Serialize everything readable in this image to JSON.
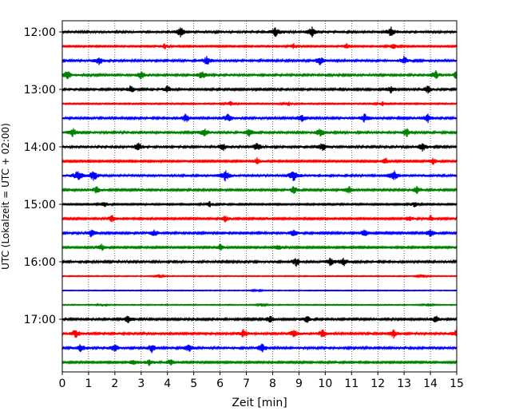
{
  "chart_data": {
    "type": "line",
    "subtype": "helicorder-seismogram",
    "xlabel": "Zeit  [min]",
    "ylabel": "UTC (Lokalzeit = UTC + 02:00)",
    "xlim": [
      0,
      15
    ],
    "x_ticks": [
      "0",
      "1",
      "2",
      "3",
      "4",
      "5",
      "6",
      "7",
      "8",
      "9",
      "10",
      "11",
      "12",
      "13",
      "14",
      "15"
    ],
    "y_tick_labels": [
      "12:00",
      "13:00",
      "14:00",
      "15:00",
      "16:00",
      "17:00"
    ],
    "grid": "vertical dotted lines at each minute",
    "trace_interval_minutes": 15,
    "first_trace_start": "12:00",
    "trace_colors": [
      "#000000",
      "#ff0000",
      "#0000ff",
      "#008000"
    ],
    "traces": [
      {
        "start": "12:00",
        "amplitude": 1.0,
        "events_min": [
          4.5,
          8.1,
          9.5,
          12.5
        ]
      },
      {
        "start": "12:15",
        "amplitude": 0.6,
        "events_min": [
          3.9,
          8.8,
          10.8,
          12.6
        ]
      },
      {
        "start": "12:30",
        "amplitude": 0.9,
        "events_min": [
          1.4,
          5.5,
          9.8,
          13.0
        ]
      },
      {
        "start": "12:45",
        "amplitude": 0.9,
        "events_min": [
          0.2,
          3.0,
          5.3,
          14.2,
          15.0
        ]
      },
      {
        "start": "13:00",
        "amplitude": 0.8,
        "events_min": [
          2.6,
          4.0,
          12.5,
          13.9
        ]
      },
      {
        "start": "13:15",
        "amplitude": 0.5,
        "events_min": [
          6.4,
          8.6,
          12.2
        ]
      },
      {
        "start": "13:30",
        "amplitude": 0.9,
        "events_min": [
          4.7,
          6.3,
          9.1,
          11.5,
          13.9
        ]
      },
      {
        "start": "13:45",
        "amplitude": 0.9,
        "events_min": [
          0.4,
          5.4,
          7.1,
          9.8,
          13.1
        ]
      },
      {
        "start": "14:00",
        "amplitude": 0.9,
        "events_min": [
          2.9,
          6.1,
          7.4,
          9.9,
          13.7
        ]
      },
      {
        "start": "14:15",
        "amplitude": 0.7,
        "events_min": [
          7.4,
          12.3,
          14.1
        ]
      },
      {
        "start": "14:30",
        "amplitude": 1.1,
        "events_min": [
          0.6,
          1.2,
          6.2,
          8.8,
          12.6
        ]
      },
      {
        "start": "14:45",
        "amplitude": 0.8,
        "events_min": [
          1.3,
          8.8,
          10.9,
          13.5
        ]
      },
      {
        "start": "15:00",
        "amplitude": 0.6,
        "events_min": [
          1.6,
          5.6,
          13.4
        ]
      },
      {
        "start": "15:15",
        "amplitude": 0.7,
        "events_min": [
          1.9,
          6.2,
          13.2,
          14.0
        ]
      },
      {
        "start": "15:30",
        "amplitude": 0.8,
        "events_min": [
          1.1,
          3.5,
          8.8,
          11.5,
          14.0
        ]
      },
      {
        "start": "15:45",
        "amplitude": 0.7,
        "events_min": [
          1.5,
          6.0,
          8.2
        ]
      },
      {
        "start": "16:00",
        "amplitude": 0.9,
        "events_min": [
          8.9,
          10.2,
          10.7
        ]
      },
      {
        "start": "16:15",
        "amplitude": 0.35,
        "events_min": [
          3.7,
          13.7
        ]
      },
      {
        "start": "16:30",
        "amplitude": 0.3,
        "events_min": [
          7.4
        ]
      },
      {
        "start": "16:45",
        "amplitude": 0.35,
        "events_min": [
          1.5,
          7.6,
          13.9
        ]
      },
      {
        "start": "17:00",
        "amplitude": 0.8,
        "events_min": [
          2.5,
          7.9,
          9.3,
          14.2
        ]
      },
      {
        "start": "17:15",
        "amplitude": 0.9,
        "events_min": [
          0.5,
          6.9,
          8.8,
          9.9,
          12.6,
          15.0
        ]
      },
      {
        "start": "17:30",
        "amplitude": 0.9,
        "events_min": [
          0.7,
          2.0,
          3.4,
          4.8,
          7.6
        ]
      },
      {
        "start": "17:45",
        "amplitude": 0.7,
        "events_min": [
          2.7,
          3.3,
          4.1
        ]
      }
    ]
  }
}
